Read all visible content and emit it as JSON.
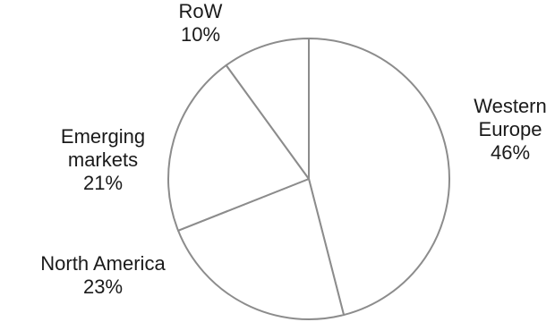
{
  "chart_data": {
    "type": "pie",
    "title": "",
    "start_angle_deg": 0,
    "direction": "clockwise",
    "slices": [
      {
        "label_lines": [
          "Western",
          "Europe"
        ],
        "value": 46,
        "value_label": "46%"
      },
      {
        "label_lines": [
          "North America"
        ],
        "value": 23,
        "value_label": "23%"
      },
      {
        "label_lines": [
          "Emerging",
          "markets"
        ],
        "value": 21,
        "value_label": "21%"
      },
      {
        "label_lines": [
          "RoW"
        ],
        "value": 10,
        "value_label": "10%"
      }
    ],
    "colors": {
      "fill": "#ffffff",
      "stroke": "#8c8c8c",
      "text": "#1a1a1a"
    }
  }
}
